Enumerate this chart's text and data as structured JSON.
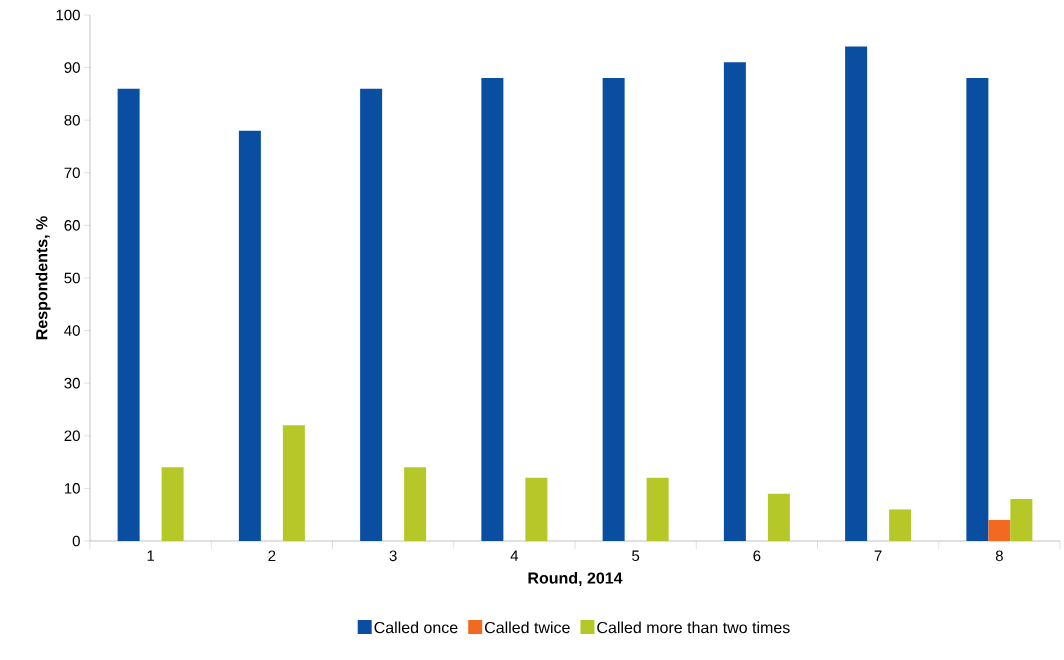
{
  "chart_data": {
    "type": "bar",
    "xlabel": "Round, 2014",
    "ylabel": "Respondents, %",
    "categories": [
      "1",
      "2",
      "3",
      "4",
      "5",
      "6",
      "7",
      "8"
    ],
    "series": [
      {
        "name": "Called once",
        "color": "#0a4ea2",
        "values": [
          86,
          78,
          86,
          88,
          88,
          91,
          94,
          88
        ]
      },
      {
        "name": "Called twice",
        "color": "#f26a21",
        "values": [
          0,
          0,
          0,
          0,
          0,
          0,
          0,
          4
        ]
      },
      {
        "name": "Called more than two times",
        "color": "#b5c827",
        "values": [
          14,
          22,
          14,
          12,
          12,
          9,
          6,
          8
        ]
      }
    ],
    "ylim": [
      0,
      100
    ],
    "yticks": [
      0,
      10,
      20,
      30,
      40,
      50,
      60,
      70,
      80,
      90,
      100
    ],
    "grid": false,
    "legend": "bottom"
  }
}
